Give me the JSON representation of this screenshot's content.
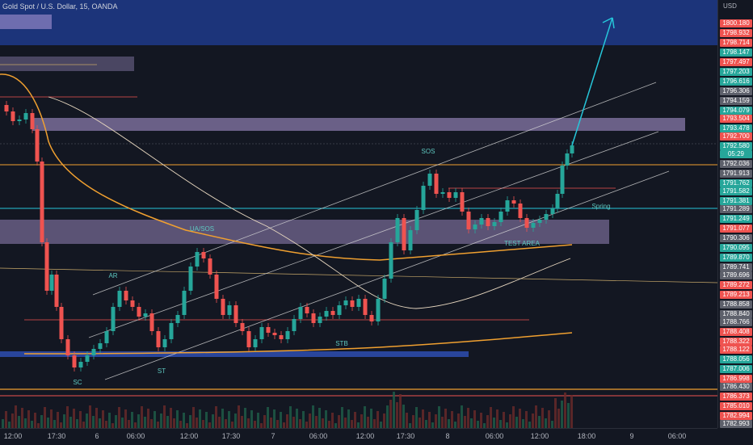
{
  "header": {
    "title": "Gold Spot / U.S. Dollar, 15, OANDA",
    "currency": "USD"
  },
  "colors": {
    "bg": "#131722",
    "up": "#26a69a",
    "down": "#ef5350",
    "purple": "#b39ddb",
    "navy": "#1e3a8a",
    "orange": "#f0a030",
    "cyan": "#26c6da",
    "white": "#d9d9d9"
  },
  "price_tags": [
    {
      "label": "1800.180",
      "color": "#ef5350"
    },
    {
      "label": "1798.932",
      "color": "#ef5350"
    },
    {
      "label": "1798.714",
      "color": "#ef5350"
    },
    {
      "label": "1798.147",
      "color": "#26a69a"
    },
    {
      "label": "1797.497",
      "color": "#ef5350"
    },
    {
      "label": "1797.203",
      "color": "#26a69a"
    },
    {
      "label": "1796.616",
      "color": "#26a69a"
    },
    {
      "label": "1796.306",
      "color": "#5d606b"
    },
    {
      "label": "1794.159",
      "color": "#5d606b"
    },
    {
      "label": "1794.079",
      "color": "#26a69a"
    },
    {
      "label": "1793.504",
      "color": "#ef5350"
    },
    {
      "label": "1793.478",
      "color": "#26a69a"
    },
    {
      "label": "1792.700",
      "color": "#ef5350"
    },
    {
      "label": "1792.580",
      "color": "#26a69a"
    },
    {
      "label": "05:29",
      "color": "#26a69a"
    },
    {
      "label": "1792.036",
      "color": "#5d606b"
    },
    {
      "label": "1791.913",
      "color": "#5d606b"
    },
    {
      "label": "1791.762",
      "color": "#26a69a"
    },
    {
      "label": "1791.582",
      "color": "#26a69a"
    },
    {
      "label": "1791.381",
      "color": "#26a69a"
    },
    {
      "label": "1791.289",
      "color": "#5d606b"
    },
    {
      "label": "1791.249",
      "color": "#26a69a"
    },
    {
      "label": "1791.077",
      "color": "#ef5350"
    },
    {
      "label": "1790.306",
      "color": "#5d606b"
    },
    {
      "label": "1790.095",
      "color": "#26a69a"
    },
    {
      "label": "1789.870",
      "color": "#26a69a"
    },
    {
      "label": "1789.741",
      "color": "#5d606b"
    },
    {
      "label": "1789.696",
      "color": "#5d606b"
    },
    {
      "label": "1789.272",
      "color": "#ef5350"
    },
    {
      "label": "1789.213",
      "color": "#ef5350"
    },
    {
      "label": "1788.858",
      "color": "#5d606b"
    },
    {
      "label": "1788.840",
      "color": "#5d606b"
    },
    {
      "label": "1788.766",
      "color": "#5d606b"
    },
    {
      "label": "1788.408",
      "color": "#ef5350"
    },
    {
      "label": "1788.322",
      "color": "#ef5350"
    },
    {
      "label": "1788.122",
      "color": "#ef5350"
    },
    {
      "label": "1788.056",
      "color": "#26a69a"
    },
    {
      "label": "1787.006",
      "color": "#26a69a"
    },
    {
      "label": "1786.998",
      "color": "#ef5350"
    },
    {
      "label": "1786.430",
      "color": "#5d606b"
    },
    {
      "label": "1786.373",
      "color": "#ef5350"
    },
    {
      "label": "1785.010",
      "color": "#ef5350"
    },
    {
      "label": "1782.994",
      "color": "#ef5350"
    },
    {
      "label": "1782.993",
      "color": "#5d606b"
    }
  ],
  "time_ticks": [
    "12:00",
    "17:30",
    "6",
    "06:00",
    "12:00",
    "17:30",
    "7",
    "06:00",
    "12:00",
    "17:30",
    "8",
    "06:00",
    "12:00",
    "18:00",
    "9",
    "06:00"
  ],
  "annotations": {
    "sc": "SC",
    "ar": "AR",
    "st": "ST",
    "ua_sos": "UA/SOS",
    "sos": "SOS",
    "stb": "STB",
    "spring": "Spring",
    "test_area": "TEST AREA"
  }
}
